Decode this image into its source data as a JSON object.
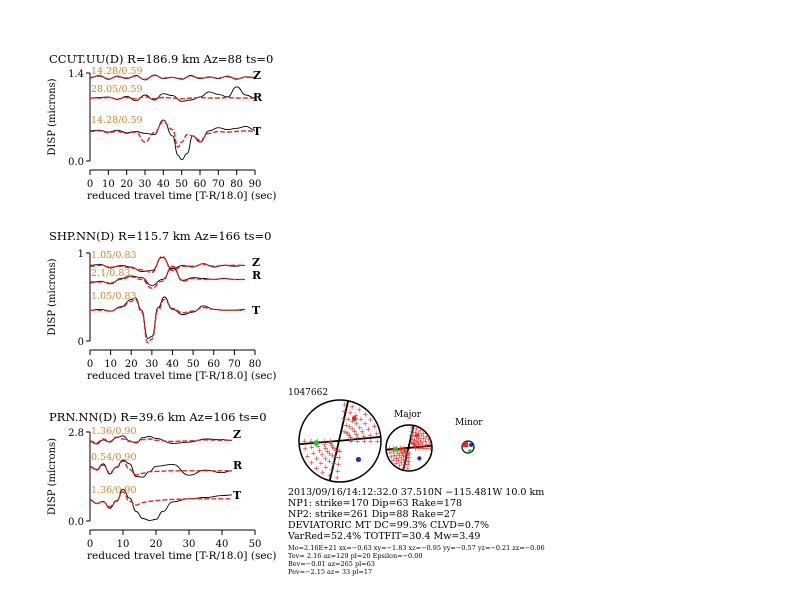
{
  "panels": [
    {
      "title": "CCUT.UU(D) R=186.9 km Az=88 ts=0",
      "ylabel": "DISP (microns)",
      "xlabel": "reduced travel time [T-R/18.0] (sec)",
      "ytick_top": "1.4",
      "ytick_bottom": "0.0",
      "xticks": [
        "0",
        "10",
        "20",
        "30",
        "40",
        "50",
        "60",
        "70",
        "80",
        "90"
      ],
      "xmax": 90,
      "traces": [
        {
          "comp": "Z",
          "label": "14.28/0.59"
        },
        {
          "comp": "R",
          "label": "28.05/0.59"
        },
        {
          "comp": "T",
          "label": "14.28/0.59"
        }
      ]
    },
    {
      "title": "SHP.NN(D) R=115.7 km Az=166 ts=0",
      "ylabel": "DISP (microns)",
      "xlabel": "reduced travel time [T-R/18.0] (sec)",
      "ytick_top": "1",
      "ytick_bottom": "0",
      "xticks": [
        "0",
        "10",
        "20",
        "30",
        "40",
        "50",
        "60",
        "70",
        "80"
      ],
      "xmax": 80,
      "traces": [
        {
          "comp": "Z",
          "label": "1.05/0.83"
        },
        {
          "comp": "R",
          "label": "2.1/0.83"
        },
        {
          "comp": "T",
          "label": "1.05/0.83"
        }
      ]
    },
    {
      "title": "PRN.NN(D) R=39.6 km Az=106 ts=0",
      "ylabel": "DISP (microns)",
      "xlabel": "reduced travel time [T-R/18.0] (sec)",
      "ytick_top": "2.8",
      "ytick_bottom": "0.0",
      "xticks": [
        "0",
        "10",
        "20",
        "30",
        "40",
        "50"
      ],
      "xmax": 50,
      "traces": [
        {
          "comp": "Z",
          "label": "1.36/0.90"
        },
        {
          "comp": "R",
          "label": "0.54/0.90"
        },
        {
          "comp": "T",
          "label": "1.36/0.90"
        }
      ]
    }
  ],
  "mechanism": {
    "event_id": "1047662",
    "major_label": "Major",
    "minor_label": "Minor"
  },
  "info_lines": [
    "2013/09/16/14:12:32.0 37.510N −115.481W 10.0 km",
    "NP1: strike=170 Dip=63 Rake=178",
    "NP2: strike=261 Dip=88 Rake=27",
    "DEVIATORIC MT DC=99.3% CLVD=0.7%",
    "VarRed=52.4% TOTFIT=30.4 Mw=3.49"
  ],
  "small_lines": [
    "Mo=2.16E+21 xx=−0.63 xy=−1.83 xz=−0.95 yy=−0.57 yz=−0.21 zz=−0.06",
    "Tev= 2.16 az=129 pl=20 Epsilon=−0.00",
    "Bev=−0.01 az=265 pl=63",
    "Pev=−2.15 az= 33 pl=17"
  ],
  "colors": {
    "observed": "#000000",
    "synthetic": "#e8271d",
    "label": "#d9822b",
    "compression_dot": "#e8271d",
    "t_axis": "#e8271d",
    "p_axis": "#2727d9",
    "b_axis": "#22c422"
  },
  "chart_data": [
    {
      "type": "line",
      "title": "CCUT.UU(D) R=186.9 km Az=88 ts=0",
      "xlabel": "reduced travel time [T-R/18.0] (sec)",
      "ylabel": "DISP (microns)",
      "xlim": [
        0,
        90
      ],
      "ylim": [
        0.0,
        1.4
      ],
      "series": [
        {
          "name": "Z observed",
          "x": [
            0,
            5,
            10,
            15,
            20,
            25,
            30,
            35,
            40,
            45,
            50,
            55,
            60,
            65,
            70,
            75,
            80,
            85,
            90
          ],
          "y": [
            1.32,
            1.36,
            1.3,
            1.35,
            1.31,
            1.36,
            1.29,
            1.37,
            1.31,
            1.33,
            1.3,
            1.36,
            1.31,
            1.34,
            1.31,
            1.35,
            1.3,
            1.34,
            1.33
          ]
        },
        {
          "name": "Z synthetic",
          "x": [
            0,
            5,
            10,
            15,
            20,
            25,
            30,
            35,
            40,
            45,
            50,
            55,
            60,
            65,
            70,
            75,
            80,
            85,
            90
          ],
          "y": [
            1.33,
            1.35,
            1.31,
            1.34,
            1.32,
            1.35,
            1.3,
            1.36,
            1.32,
            1.33,
            1.31,
            1.35,
            1.32,
            1.33,
            1.32,
            1.34,
            1.31,
            1.33,
            1.33
          ]
        },
        {
          "name": "R observed",
          "x": [
            0,
            5,
            10,
            15,
            20,
            25,
            30,
            35,
            40,
            45,
            50,
            55,
            60,
            65,
            70,
            75,
            80,
            85,
            90
          ],
          "y": [
            1.0,
            1.01,
            1.02,
            0.98,
            1.03,
            0.96,
            1.05,
            0.97,
            1.07,
            1.04,
            0.95,
            0.97,
            1.02,
            1.1,
            1.06,
            1.02,
            1.18,
            1.05,
            1.0
          ]
        },
        {
          "name": "R synthetic",
          "x": [
            0,
            5,
            10,
            15,
            20,
            25,
            30,
            35,
            40,
            45,
            50,
            55,
            60,
            65,
            70,
            75,
            80,
            85,
            90
          ],
          "y": [
            1.0,
            1.0,
            1.01,
            0.99,
            1.01,
            0.99,
            1.02,
            0.99,
            1.01,
            1.0,
            0.99,
            1.0,
            1.01,
            1.0,
            1.0,
            1.01,
            1.0,
            1.0,
            1.0
          ]
        },
        {
          "name": "T observed",
          "x": [
            0,
            5,
            10,
            15,
            20,
            25,
            30,
            35,
            40,
            45,
            48,
            50,
            53,
            56,
            60,
            65,
            70,
            75,
            80,
            85,
            90
          ],
          "y": [
            0.48,
            0.49,
            0.46,
            0.49,
            0.45,
            0.47,
            0.44,
            0.42,
            0.65,
            0.4,
            0.09,
            0.02,
            0.12,
            0.4,
            0.3,
            0.48,
            0.53,
            0.5,
            0.52,
            0.55,
            0.49
          ]
        },
        {
          "name": "T synthetic",
          "x": [
            0,
            5,
            10,
            15,
            20,
            25,
            30,
            35,
            40,
            45,
            48,
            50,
            53,
            56,
            60,
            65,
            70,
            75,
            80,
            85,
            90
          ],
          "y": [
            0.47,
            0.48,
            0.45,
            0.47,
            0.44,
            0.46,
            0.3,
            0.45,
            0.62,
            0.5,
            0.22,
            0.3,
            0.42,
            0.4,
            0.33,
            0.44,
            0.47,
            0.46,
            0.47,
            0.48,
            0.47
          ]
        }
      ]
    },
    {
      "type": "line",
      "title": "SHP.NN(D) R=115.7 km Az=166 ts=0",
      "xlabel": "reduced travel time [T-R/18.0] (sec)",
      "ylabel": "DISP (microns)",
      "xlim": [
        0,
        80
      ],
      "ylim": [
        0,
        1
      ],
      "series": [
        {
          "name": "Z observed",
          "x": [
            0,
            5,
            10,
            15,
            20,
            25,
            30,
            35,
            40,
            45,
            50,
            55,
            60,
            65,
            70,
            75
          ],
          "y": [
            0.86,
            0.87,
            0.83,
            0.86,
            0.84,
            0.79,
            0.8,
            0.95,
            0.82,
            0.86,
            0.84,
            0.88,
            0.84,
            0.86,
            0.85,
            0.86
          ]
        },
        {
          "name": "Z synthetic",
          "x": [
            0,
            5,
            10,
            15,
            20,
            25,
            30,
            35,
            40,
            45,
            50,
            55,
            60,
            65,
            70,
            75
          ],
          "y": [
            0.85,
            0.86,
            0.84,
            0.85,
            0.83,
            0.81,
            0.78,
            0.96,
            0.8,
            0.85,
            0.85,
            0.87,
            0.85,
            0.86,
            0.86,
            0.86
          ]
        },
        {
          "name": "R observed",
          "x": [
            0,
            5,
            10,
            15,
            20,
            25,
            30,
            35,
            40,
            45,
            50,
            55,
            60,
            65,
            70,
            75
          ],
          "y": [
            0.66,
            0.68,
            0.65,
            0.71,
            0.74,
            0.72,
            0.63,
            0.7,
            0.83,
            0.69,
            0.72,
            0.71,
            0.7,
            0.71,
            0.7,
            0.7
          ]
        },
        {
          "name": "R synthetic",
          "x": [
            0,
            5,
            10,
            15,
            20,
            25,
            30,
            35,
            40,
            45,
            50,
            55,
            60,
            65,
            70,
            75
          ],
          "y": [
            0.67,
            0.67,
            0.66,
            0.7,
            0.73,
            0.7,
            0.6,
            0.68,
            0.85,
            0.68,
            0.71,
            0.7,
            0.7,
            0.71,
            0.7,
            0.7
          ]
        },
        {
          "name": "T observed",
          "x": [
            0,
            5,
            10,
            15,
            20,
            22,
            25,
            28,
            30,
            33,
            36,
            40,
            45,
            50,
            55,
            60,
            65,
            70,
            75
          ],
          "y": [
            0.35,
            0.36,
            0.34,
            0.39,
            0.47,
            0.49,
            0.35,
            0.03,
            0.05,
            0.38,
            0.5,
            0.36,
            0.3,
            0.33,
            0.4,
            0.36,
            0.35,
            0.35,
            0.36
          ]
        },
        {
          "name": "T synthetic",
          "x": [
            0,
            5,
            10,
            15,
            20,
            22,
            25,
            28,
            30,
            33,
            36,
            40,
            45,
            50,
            55,
            60,
            65,
            70,
            75
          ],
          "y": [
            0.35,
            0.35,
            0.34,
            0.38,
            0.45,
            0.47,
            0.33,
            -0.02,
            0.02,
            0.35,
            0.47,
            0.37,
            0.32,
            0.34,
            0.38,
            0.36,
            0.35,
            0.35,
            0.35
          ]
        }
      ]
    },
    {
      "type": "line",
      "title": "PRN.NN(D) R=39.6 km Az=106 ts=0",
      "xlabel": "reduced travel time [T-R/18.0] (sec)",
      "ylabel": "DISP (microns)",
      "xlim": [
        0,
        50
      ],
      "ylim": [
        0.0,
        2.8
      ],
      "series": [
        {
          "name": "Z observed",
          "x": [
            0,
            2,
            4,
            6,
            8,
            10,
            12,
            14,
            16,
            18,
            20,
            25,
            30,
            35,
            40,
            43
          ],
          "y": [
            2.5,
            2.42,
            2.55,
            2.48,
            2.62,
            2.68,
            2.52,
            2.45,
            2.62,
            2.66,
            2.6,
            2.44,
            2.48,
            2.58,
            2.56,
            2.54
          ]
        },
        {
          "name": "Z synthetic",
          "x": [
            0,
            2,
            4,
            6,
            8,
            10,
            12,
            14,
            16,
            18,
            20,
            25,
            30,
            35,
            40,
            43
          ],
          "y": [
            2.52,
            2.46,
            2.58,
            2.5,
            2.64,
            2.58,
            2.5,
            2.48,
            2.56,
            2.58,
            2.54,
            2.5,
            2.52,
            2.55,
            2.54,
            2.54
          ]
        },
        {
          "name": "R observed",
          "x": [
            0,
            2,
            4,
            6,
            8,
            10,
            12,
            14,
            16,
            18,
            20,
            25,
            30,
            35,
            40,
            43
          ],
          "y": [
            1.72,
            1.62,
            1.8,
            1.48,
            1.7,
            1.92,
            1.8,
            1.4,
            1.38,
            1.55,
            1.72,
            1.78,
            1.44,
            1.6,
            1.52,
            1.58
          ]
        },
        {
          "name": "R synthetic",
          "x": [
            0,
            2,
            4,
            6,
            8,
            10,
            12,
            14,
            16,
            18,
            20,
            25,
            30,
            35,
            40,
            43
          ],
          "y": [
            1.7,
            1.6,
            1.76,
            1.52,
            1.68,
            1.88,
            1.62,
            1.45,
            1.5,
            1.55,
            1.56,
            1.58,
            1.58,
            1.58,
            1.58,
            1.58
          ]
        },
        {
          "name": "T observed",
          "x": [
            0,
            2,
            4,
            6,
            8,
            10,
            12,
            14,
            16,
            18,
            20,
            22,
            25,
            30,
            35,
            40,
            43
          ],
          "y": [
            0.68,
            0.55,
            0.62,
            0.4,
            0.62,
            1.0,
            0.72,
            0.3,
            0.08,
            0.02,
            0.05,
            0.3,
            0.6,
            0.7,
            0.74,
            0.8,
            0.82
          ]
        },
        {
          "name": "T synthetic",
          "x": [
            0,
            2,
            4,
            6,
            8,
            10,
            12,
            14,
            16,
            18,
            20,
            22,
            25,
            30,
            35,
            40,
            43
          ],
          "y": [
            0.66,
            0.55,
            0.6,
            0.45,
            0.64,
            0.92,
            0.62,
            0.5,
            0.58,
            0.62,
            0.64,
            0.66,
            0.68,
            0.7,
            0.7,
            0.7,
            0.7
          ]
        }
      ]
    }
  ]
}
